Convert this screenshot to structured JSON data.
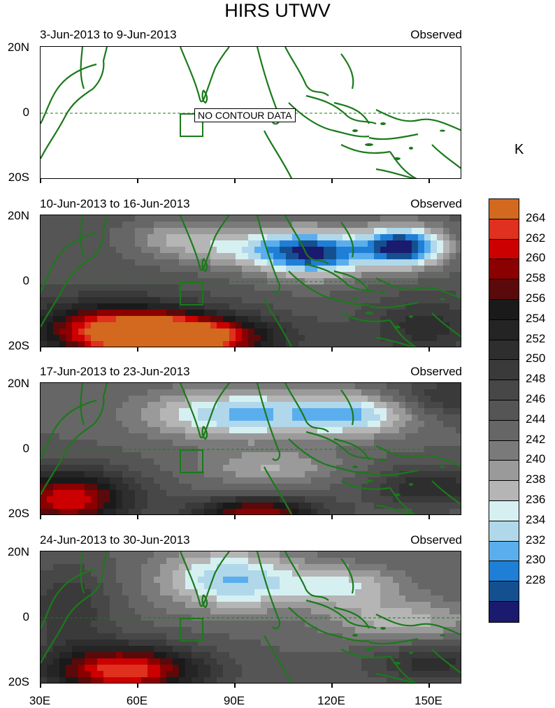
{
  "title": "HIRS UTWV",
  "units_label": "K",
  "nodata_label": "NO CONTOUR DATA",
  "panels": [
    {
      "period": "3-Jun-2013 to 9-Jun-2013",
      "label": "Observed",
      "has_data": false
    },
    {
      "period": "10-Jun-2013 to 16-Jun-2013",
      "label": "Observed",
      "has_data": true
    },
    {
      "period": "17-Jun-2013 to 23-Jun-2013",
      "label": "Observed",
      "has_data": true
    },
    {
      "period": "24-Jun-2013 to 30-Jun-2013",
      "label": "Observed",
      "has_data": true
    }
  ],
  "y_axis": {
    "top": "20N",
    "mid": "0",
    "bottom": "20S"
  },
  "x_axis": [
    "30E",
    "60E",
    "90E",
    "120E",
    "150E"
  ],
  "colorbar": {
    "levels": [
      "264",
      "262",
      "260",
      "258",
      "256",
      "254",
      "252",
      "250",
      "248",
      "246",
      "244",
      "242",
      "240",
      "238",
      "236",
      "234",
      "232",
      "230",
      "228"
    ],
    "colors": [
      "#d2691e",
      "#e0301e",
      "#cc0000",
      "#8b0000",
      "#5a0a0a",
      "#1a1a1a",
      "#242424",
      "#2e2e2e",
      "#3a3a3a",
      "#474747",
      "#555555",
      "#666666",
      "#7a7a7a",
      "#9a9a9a",
      "#b5b5b5",
      "#d6f0f2",
      "#b0d8ea",
      "#5aaeee",
      "#1f7fd6",
      "#14508f",
      "#1a1a6e"
    ]
  },
  "colors": {
    "coastline": "#1a7a1a",
    "equator": "#1a7a1a"
  }
}
